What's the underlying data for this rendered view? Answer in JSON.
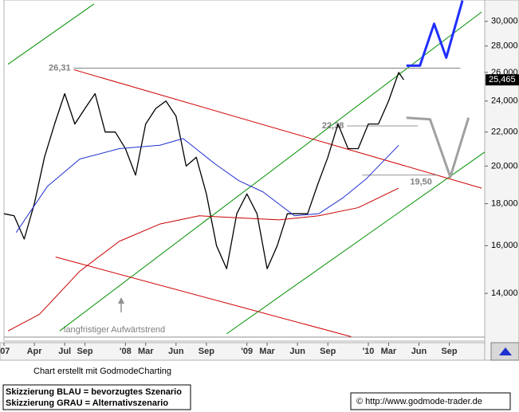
{
  "chart_data": {
    "type": "line",
    "log_scale": true,
    "xlim": [
      0,
      47.5
    ],
    "ylim": [
      12.33,
      31.85
    ],
    "xticks": [
      {
        "value": 0,
        "label": "'07"
      },
      {
        "value": 3,
        "label": "Apr"
      },
      {
        "value": 6,
        "label": "Jul"
      },
      {
        "value": 8,
        "label": "Sep"
      },
      {
        "value": 12,
        "label": "'08"
      },
      {
        "value": 14,
        "label": "Mar"
      },
      {
        "value": 17,
        "label": "Jun"
      },
      {
        "value": 20,
        "label": "Sep"
      },
      {
        "value": 24,
        "label": "'09"
      },
      {
        "value": 26,
        "label": "Mar"
      },
      {
        "value": 29,
        "label": "Jun"
      },
      {
        "value": 32,
        "label": "Sep"
      },
      {
        "value": 36,
        "label": "'10"
      },
      {
        "value": 38,
        "label": "Mar"
      },
      {
        "value": 41,
        "label": "Jun"
      },
      {
        "value": 44,
        "label": "Sep"
      }
    ],
    "yticks": [
      {
        "value": 14,
        "label": "14,000"
      },
      {
        "value": 16,
        "label": "16,000"
      },
      {
        "value": 18,
        "label": "18,000"
      },
      {
        "value": 20,
        "label": "20,000"
      },
      {
        "value": 22,
        "label": "22,000"
      },
      {
        "value": 24,
        "label": "24,000"
      },
      {
        "value": 26,
        "label": "26,000"
      },
      {
        "value": 28,
        "label": "28,000"
      },
      {
        "value": 30,
        "label": "30,000"
      }
    ],
    "series": [
      {
        "color": "#000000",
        "width": 1.3,
        "x": [
          0,
          1,
          2,
          3,
          4,
          5,
          6,
          7,
          8,
          9,
          10,
          11,
          12,
          13,
          14,
          15,
          16,
          17,
          18,
          19,
          20,
          21,
          22,
          23,
          24,
          25,
          26,
          27,
          28,
          29,
          30,
          31,
          32,
          33,
          34,
          35,
          36,
          37,
          38,
          39,
          39.5
        ],
        "values": [
          17.5,
          17.4,
          16.3,
          18,
          20.5,
          22.5,
          24.5,
          22.5,
          23.5,
          24.5,
          22,
          22,
          21,
          19.5,
          22.5,
          23.5,
          24,
          23,
          20,
          20.5,
          18.5,
          16,
          15,
          17.5,
          18.5,
          17.5,
          15,
          16,
          17.5,
          17.5,
          17.5,
          19,
          20.5,
          22.5,
          21,
          21,
          22.5,
          22.5,
          24,
          26,
          25.465
        ]
      },
      {
        "color": "#1f2fd0",
        "width": 1,
        "x": [
          1.2,
          4.3,
          7.5,
          11.4,
          15.4,
          17.7,
          20.9,
          23.2,
          25.6,
          28.7,
          31.1,
          33.5,
          35.8,
          39.0
        ],
        "values": [
          16.6,
          18.9,
          20.4,
          21,
          21.2,
          21.6,
          20.1,
          19.2,
          18.6,
          17.4,
          17.5,
          18.3,
          19.3,
          21.2
        ]
      },
      {
        "color": "#c80000",
        "width": 1,
        "x": [
          0.4,
          3.5,
          7.5,
          11.4,
          15.4,
          19.3,
          23.2,
          27.2,
          31.1,
          35.0,
          39.0
        ],
        "values": [
          12.6,
          13.2,
          14.9,
          16.2,
          17,
          17.4,
          17.3,
          17.2,
          17.4,
          17.8,
          18.8
        ]
      },
      {
        "color": "#1f2fff",
        "width": 3,
        "x": [
          39.76,
          41.1,
          42.5,
          43.7,
          45.3
        ],
        "values": [
          26.5,
          26.5,
          29.8,
          27.1,
          31.8
        ]
      },
      {
        "color": "#a0a0a0",
        "width": 3,
        "x": [
          39.76,
          42.1,
          44.1,
          45.9
        ],
        "values": [
          22.9,
          22.8,
          19.4,
          22.9
        ]
      }
    ],
    "trendlines": [
      {
        "color": "#009000",
        "x": [
          0.39,
          8.9
        ],
        "values": [
          26.6,
          31.5
        ]
      },
      {
        "color": "#009000",
        "x": [
          5.5,
          47.2
        ],
        "values": [
          12.6,
          30.8
        ]
      },
      {
        "color": "#009000",
        "x": [
          22.0,
          47.5
        ],
        "values": [
          12.5,
          20.8
        ]
      },
      {
        "color": "#d00000",
        "x": [
          6.9,
          47.2
        ],
        "values": [
          26.2,
          18.8
        ]
      },
      {
        "color": "#d00000",
        "x": [
          5.1,
          34.3
        ],
        "values": [
          15.5,
          12.4
        ]
      }
    ],
    "levels": [
      {
        "value": 26.31,
        "label": "26,31",
        "from": 6.9,
        "to": 45.1
      },
      {
        "value": 22.38,
        "label": "22,38",
        "from": 33.9,
        "to": 40.9
      },
      {
        "value": 19.5,
        "label": "19,50",
        "from": 35.4,
        "to": 42.9
      }
    ],
    "last_price": {
      "value": 25.465,
      "label": "25,465"
    },
    "annotation": "langfristiger Aufwärtstrend",
    "credit": "Chart erstellt mit GodmodeCharting",
    "legend_lines": [
      "Skizzierung BLAU = bevorzugtes Szenario",
      "Skizzierung GRAU = Alternativszenario"
    ],
    "source": "© http://www.godmode-trader.de"
  }
}
